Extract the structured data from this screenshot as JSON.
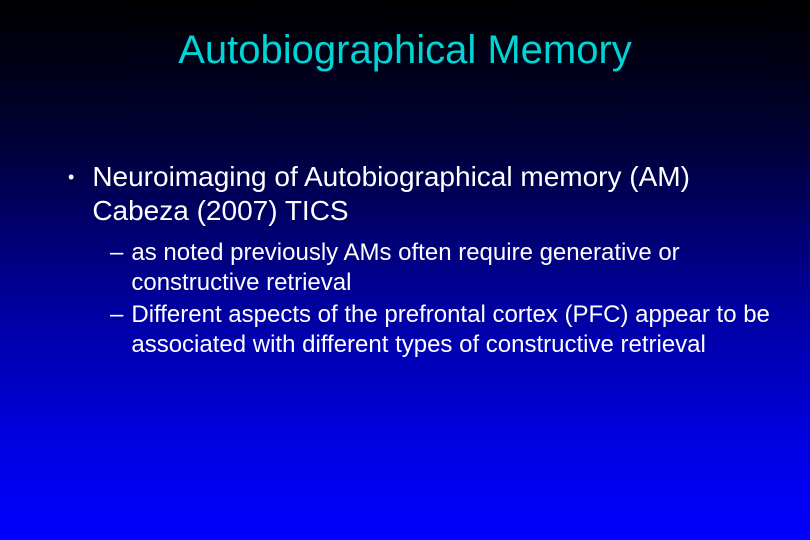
{
  "slide": {
    "title": "Autobiographical Memory",
    "bullet1": "Neuroimaging of Autobiographical memory (AM) Cabeza (2007) TICS",
    "sub1": " as noted previously AMs often require generative or constructive retrieval",
    "sub2": "Different aspects of the prefrontal cortex (PFC) appear to be associated with different types of constructive retrieval"
  }
}
